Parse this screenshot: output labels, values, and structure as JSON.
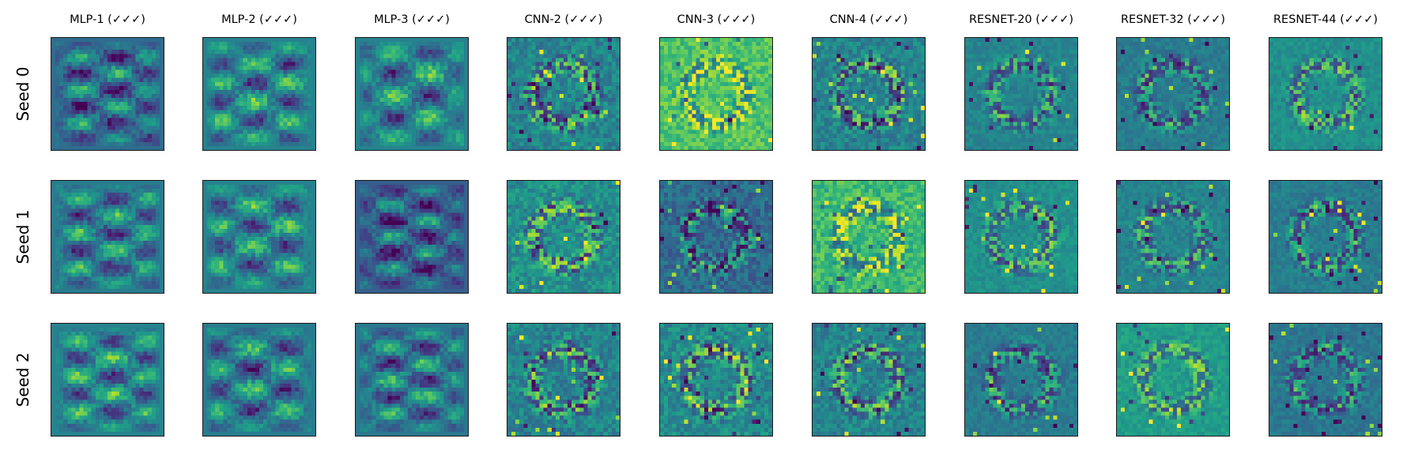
{
  "chart_data": {
    "type": "heatmap",
    "columns": [
      "MLP-1 (✓✓✓)",
      "MLP-2 (✓✓✓)",
      "MLP-3 (✓✓✓)",
      "CNN-2 (✓✓✓)",
      "CNN-3 (✓✓✓)",
      "CNN-4 (✓✓✓)",
      "RESNET-20 (✓✓✓)",
      "RESNET-32 (✓✓✓)",
      "RESNET-44 (✓✓✓)"
    ],
    "rows": [
      "Seed 0",
      "Seed 1",
      "Seed 2"
    ],
    "colormap": "viridis",
    "colors": {
      "low": "#440154",
      "mid_low": "#3b528b",
      "mid": "#21918c",
      "mid_high": "#5ec962",
      "high": "#fde725"
    },
    "grid": false,
    "ticks": false
  }
}
